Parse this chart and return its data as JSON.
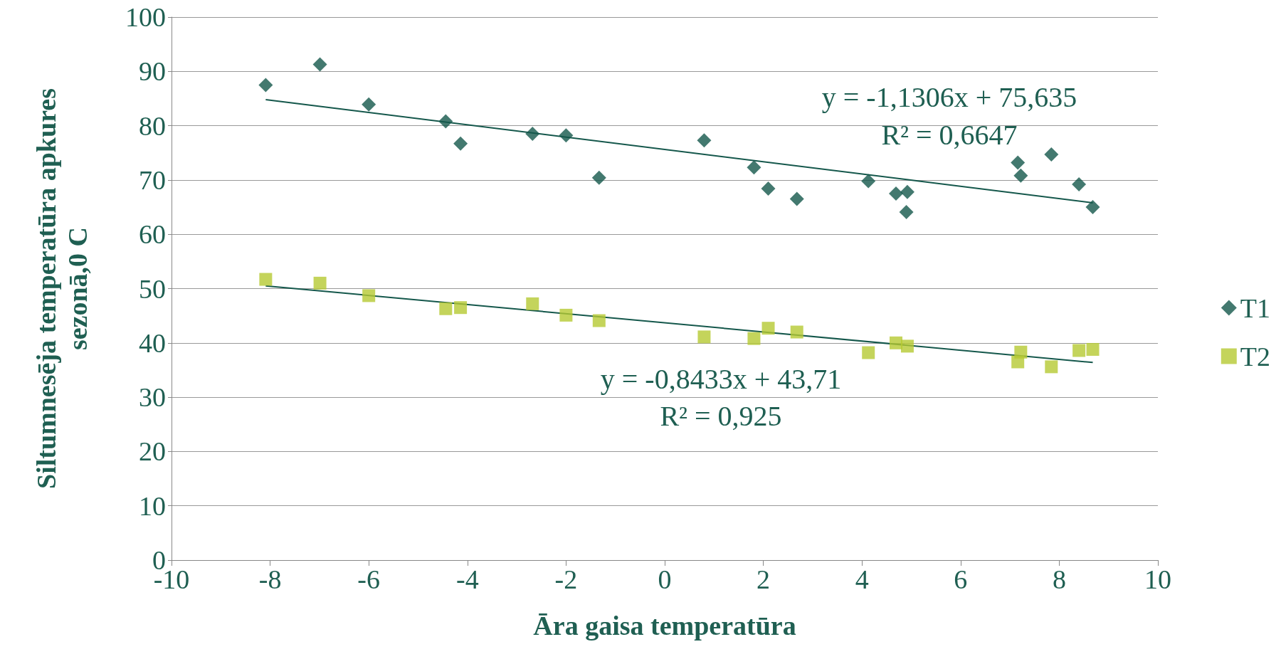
{
  "chart_data": {
    "type": "scatter",
    "xlabel": "Āra gaisa temperatūra",
    "ylabel": "Siltumnesēja temperatūra apkures\nsezonā,0 C",
    "xlim": [
      -10,
      10
    ],
    "xticks": [
      -10,
      -8,
      -6,
      -4,
      -2,
      0,
      2,
      4,
      6,
      8,
      10
    ],
    "ylim": [
      0,
      100
    ],
    "yticks": [
      0,
      10,
      20,
      30,
      40,
      50,
      60,
      70,
      80,
      90,
      100
    ],
    "grid": "y",
    "legend": "right",
    "series": [
      {
        "name": "T1",
        "color": "#14574b",
        "marker": "diamond",
        "x": [
          -8.09,
          -6.99,
          -6.0,
          -4.44,
          -4.14,
          -2.68,
          -2.0,
          -1.33,
          0.8,
          1.81,
          2.1,
          2.68,
          4.13,
          4.69,
          4.92,
          4.9,
          7.16,
          7.22,
          7.84,
          8.4,
          8.68
        ],
        "values": [
          87.5,
          91.3,
          83.9,
          80.8,
          76.7,
          78.5,
          78.2,
          70.4,
          77.3,
          72.3,
          68.4,
          66.5,
          69.8,
          67.5,
          67.8,
          64.1,
          73.2,
          70.8,
          74.7,
          69.2,
          65.0
        ]
      },
      {
        "name": "T2",
        "color": "#b5c932",
        "marker": "square",
        "x": [
          -8.09,
          -6.99,
          -6.0,
          -4.44,
          -4.14,
          -2.68,
          -2.0,
          -1.33,
          0.8,
          1.81,
          2.1,
          2.68,
          4.13,
          4.69,
          4.92,
          7.16,
          7.22,
          7.84,
          8.4,
          8.68
        ],
        "values": [
          51.7,
          51.0,
          48.7,
          46.3,
          46.5,
          47.2,
          45.1,
          44.1,
          41.1,
          40.8,
          42.7,
          42.0,
          38.2,
          40.0,
          39.4,
          36.5,
          38.3,
          35.6,
          38.6,
          38.8
        ]
      },
      {
        "type": "line",
        "color": "#14574b",
        "marker": "none",
        "x": [
          -8.09,
          8.68
        ],
        "values": [
          84.8,
          65.8
        ]
      },
      {
        "type": "line",
        "color": "#14574b",
        "marker": "none",
        "x": [
          -8.09,
          8.68
        ],
        "values": [
          50.5,
          36.4
        ]
      }
    ],
    "annotations": [
      "y = -1,1306x + 75,635",
      "R² = 0,6647",
      "y = -0,8433x + 43,71",
      "R² = 0,925"
    ]
  }
}
